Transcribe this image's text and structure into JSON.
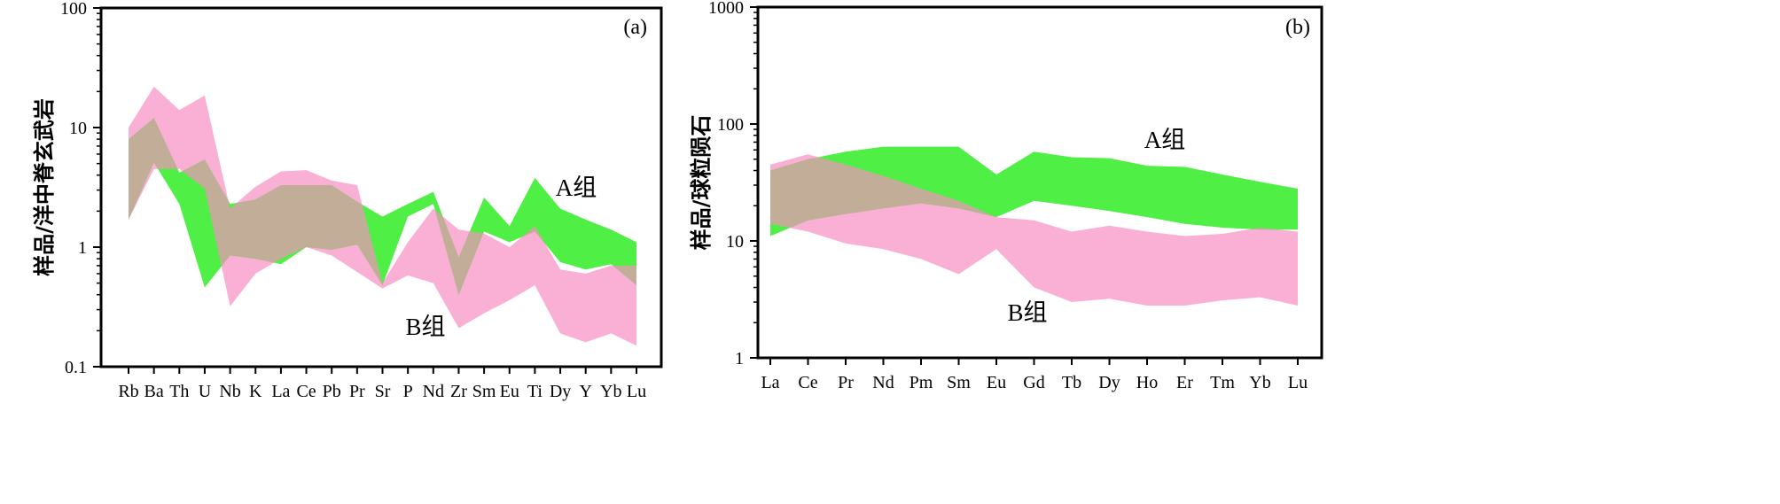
{
  "chart_data": [
    {
      "type": "area",
      "panel_label": "(a)",
      "ylabel": "样品/洋中脊玄武岩",
      "yscale": "log",
      "ylim": [
        0.1,
        100
      ],
      "yticks": [
        "0.1",
        "1",
        "10",
        "100"
      ],
      "ytick_values": [
        0.1,
        1,
        10,
        100
      ],
      "categories": [
        "Rb",
        "Ba",
        "Th",
        "U",
        "Nb",
        "K",
        "La",
        "Ce",
        "Pb",
        "Pr",
        "Sr",
        "P",
        "Nd",
        "Zr",
        "Sm",
        "Eu",
        "Ti",
        "Dy",
        "Y",
        "Yb",
        "Lu"
      ],
      "series": [
        {
          "name": "B组",
          "label": "B组",
          "color": "#f9b0d4",
          "upper": [
            10,
            22,
            14,
            18.5,
            2.1,
            3.2,
            4.3,
            4.4,
            3.6,
            3.3,
            0.5,
            1.1,
            2.1,
            1.4,
            1.3,
            1.0,
            1.5,
            0.65,
            0.6,
            0.7,
            0.7
          ],
          "lower": [
            1.7,
            4.5,
            4.5,
            3.1,
            0.32,
            0.6,
            0.8,
            1.0,
            0.85,
            0.62,
            0.45,
            0.58,
            0.5,
            0.21,
            0.28,
            0.36,
            0.48,
            0.19,
            0.16,
            0.19,
            0.15
          ]
        },
        {
          "name": "A组",
          "label": "A组",
          "color": "#4fef45",
          "upper": [
            8,
            12,
            4.2,
            5.4,
            2.3,
            2.5,
            3.3,
            3.3,
            3.3,
            2.4,
            1.8,
            2.3,
            2.9,
            0.82,
            2.6,
            1.5,
            3.8,
            2.1,
            1.7,
            1.4,
            1.1
          ],
          "lower": [
            1.7,
            5.1,
            2.3,
            0.46,
            0.85,
            0.8,
            0.72,
            1.0,
            0.95,
            1.05,
            0.48,
            1.8,
            2.3,
            0.4,
            1.35,
            1.1,
            1.35,
            0.75,
            0.65,
            0.72,
            0.48
          ]
        }
      ]
    },
    {
      "type": "area",
      "panel_label": "(b)",
      "ylabel": "样品/球粒陨石",
      "yscale": "log",
      "ylim": [
        1,
        1000
      ],
      "yticks": [
        "1",
        "10",
        "100",
        "1000"
      ],
      "ytick_values": [
        1,
        10,
        100,
        1000
      ],
      "categories": [
        "La",
        "Ce",
        "Pr",
        "Nd",
        "Pm",
        "Sm",
        "Eu",
        "Gd",
        "Tb",
        "Dy",
        "Ho",
        "Er",
        "Tm",
        "Yb",
        "Lu"
      ],
      "series": [
        {
          "name": "B组",
          "label": "B组",
          "color": "#f9b0d4",
          "upper": [
            45,
            55,
            45,
            36,
            28,
            22,
            16,
            15,
            12,
            13.5,
            12,
            11,
            11.5,
            13,
            12
          ],
          "lower": [
            14,
            12,
            9.5,
            8.5,
            7,
            5.2,
            8.5,
            4,
            3,
            3.2,
            2.8,
            2.8,
            3.1,
            3.3,
            2.8
          ]
        },
        {
          "name": "A组",
          "label": "A组",
          "color": "#4fef45",
          "upper": [
            40,
            50,
            58,
            64,
            64,
            64,
            37,
            58,
            52,
            51,
            44,
            43,
            37,
            32,
            28
          ],
          "lower": [
            11,
            15,
            17,
            19,
            21,
            19,
            16,
            22,
            20,
            18,
            16,
            14,
            13,
            12.5,
            12.5
          ]
        }
      ]
    }
  ]
}
